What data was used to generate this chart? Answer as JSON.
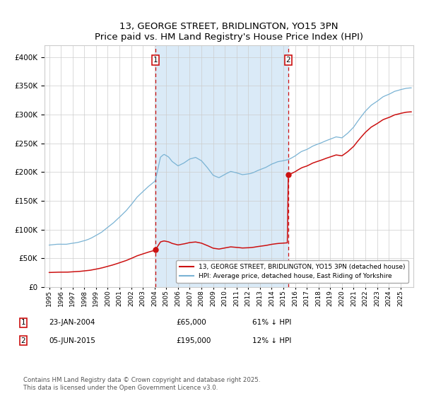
{
  "title": "13, GEORGE STREET, BRIDLINGTON, YO15 3PN",
  "subtitle": "Price paid vs. HM Land Registry's House Price Index (HPI)",
  "legend_line1": "13, GEORGE STREET, BRIDLINGTON, YO15 3PN (detached house)",
  "legend_line2": "HPI: Average price, detached house, East Riding of Yorkshire",
  "sale1_date": "23-JAN-2004",
  "sale1_price": 65000,
  "sale1_label": "61% ↓ HPI",
  "sale2_date": "05-JUN-2015",
  "sale2_price": 195000,
  "sale2_label": "12% ↓ HPI",
  "footnote": "Contains HM Land Registry data © Crown copyright and database right 2025.\nThis data is licensed under the Open Government Licence v3.0.",
  "hpi_color": "#7ab3d4",
  "property_color": "#cc1111",
  "shade_color": "#daeaf7",
  "grid_color": "#cccccc",
  "ylim_max": 420000,
  "sale1_x": 2004.07,
  "sale2_x": 2015.42
}
